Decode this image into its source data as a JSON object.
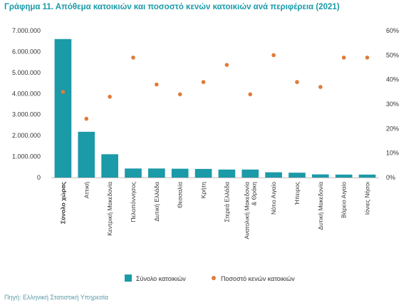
{
  "title_prefix": "Γράφημα 11.",
  "title_text": "Απόθεμα κατοικιών και ποσοστό κενών κατοικιών ανά περιφέρεια (2021)",
  "source": "Πηγή: Ελληνική Στατιστική Υπηρεσία",
  "colors": {
    "bar": "#1b9aa8",
    "dot": "#e07b39",
    "title": "#1a9aa8",
    "axis": "#bfbfbf"
  },
  "chart_data": {
    "type": "bar",
    "categories": [
      "Σύνολο χώρας",
      "Αττική",
      "Κεντρική Μακεδονία",
      "Πελοπόννησος",
      "Δυτική Ελλάδα",
      "Θεσσαλία",
      "Κρήτη",
      "Στερεά Ελλάδα",
      "Ανατολική Μακεδονία & Θράκη",
      "Νότιο Αιγαίο",
      "Ήπειρος",
      "Δυτική Μακεδονία",
      "Βόρειο Αιγαίο",
      "Ιόνιες Νήσοι"
    ],
    "bold_category": "Σύνολο χώρας",
    "series": [
      {
        "name": "Σύνολο κατοικιών",
        "type": "bar",
        "axis": "left",
        "values": [
          6600000,
          2180000,
          1110000,
          430000,
          430000,
          420000,
          410000,
          380000,
          380000,
          250000,
          230000,
          150000,
          140000,
          140000
        ]
      },
      {
        "name": "Ποσοστό κενών κατοικιών",
        "type": "scatter",
        "axis": "right",
        "values": [
          35,
          24,
          33,
          49,
          38,
          34,
          39,
          46,
          34,
          50,
          39,
          37,
          49,
          49
        ]
      }
    ],
    "left_axis": {
      "min": 0,
      "max": 7000000,
      "ticks": [
        "0",
        "1.000.000",
        "2.000.000",
        "3.000.000",
        "4.000.000",
        "5.000.000",
        "6.000.000",
        "7.000.000"
      ]
    },
    "right_axis": {
      "min": 0,
      "max": 60,
      "ticks": [
        "0%",
        "10%",
        "20%",
        "30%",
        "40%",
        "50%",
        "60%"
      ]
    },
    "legend_position": "bottom"
  }
}
